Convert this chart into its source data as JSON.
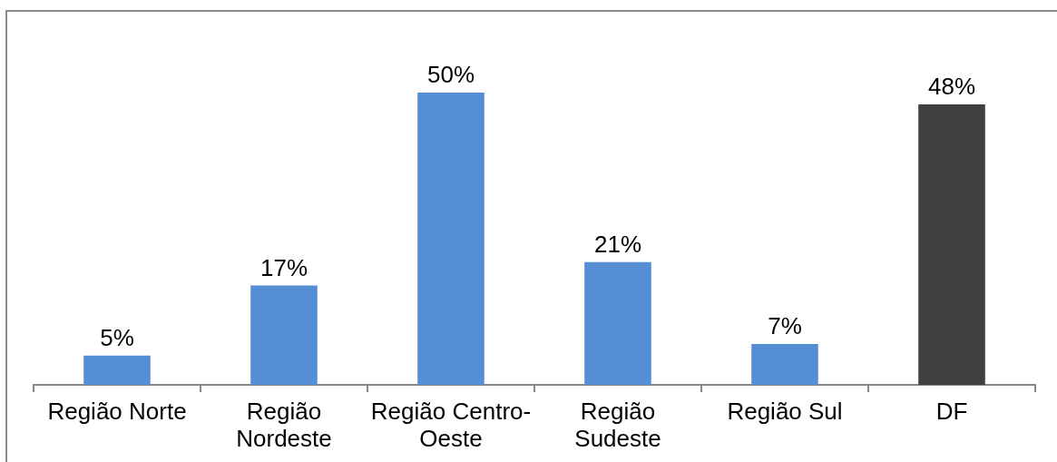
{
  "chart_data": {
    "type": "bar",
    "categories": [
      "Região Norte",
      "Região Nordeste",
      "Região Centro-Oeste",
      "Região Sudeste",
      "Região Sul",
      "DF"
    ],
    "values": [
      5,
      17,
      50,
      21,
      7,
      48
    ],
    "colors": [
      "#558ed5",
      "#558ed5",
      "#558ed5",
      "#558ed5",
      "#558ed5",
      "#404040"
    ],
    "value_labels": [
      "5%",
      "17%",
      "50%",
      "21%",
      "7%",
      "48%"
    ]
  }
}
